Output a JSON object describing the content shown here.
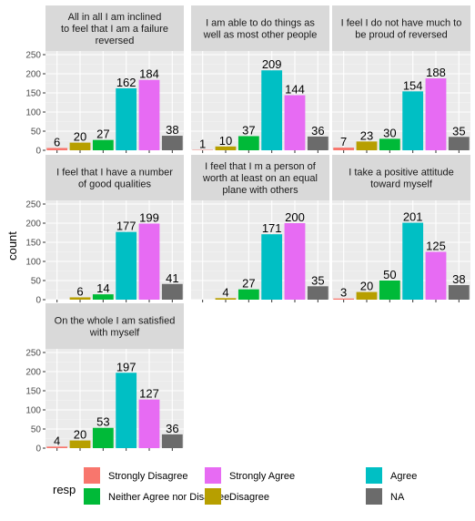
{
  "chart_data": {
    "type": "bar",
    "ylabel": "count",
    "ylim": [
      0,
      250
    ],
    "yticks": [
      0,
      50,
      100,
      150,
      200,
      250
    ],
    "facet_ncol": 3,
    "grid": true,
    "legend_title": "resp",
    "legend_position": "bottom",
    "categories": [
      "Strongly Disagree",
      "Disagree",
      "Neither Agree nor Disagree",
      "Agree",
      "Strongly Agree",
      "NA"
    ],
    "colors": [
      "#F8766D",
      "#B79F00",
      "#00BA38",
      "#00BFC4",
      "#E76BF3",
      "#6B6B6B"
    ],
    "legend_order": [
      0,
      2,
      4,
      1,
      3,
      5
    ],
    "facets": [
      {
        "title_lines": [
          "All in all I am inclined",
          "to feel that I am a failure",
          "reversed"
        ],
        "values": [
          6,
          20,
          27,
          162,
          184,
          38
        ]
      },
      {
        "title_lines": [
          "I am able to do things as",
          "well as most other people"
        ],
        "values": [
          1,
          10,
          37,
          209,
          144,
          36
        ]
      },
      {
        "title_lines": [
          "I feel I do not have much to",
          "be proud of reversed"
        ],
        "values": [
          7,
          23,
          30,
          154,
          188,
          35
        ]
      },
      {
        "title_lines": [
          "I feel that I have a number",
          "of good qualities"
        ],
        "values": [
          0,
          6,
          14,
          177,
          199,
          41
        ]
      },
      {
        "title_lines": [
          "I feel that I m a person of",
          "worth at least on an equal",
          "plane with others"
        ],
        "values": [
          0,
          4,
          27,
          171,
          200,
          35
        ]
      },
      {
        "title_lines": [
          "I take a positive attitude",
          "toward myself"
        ],
        "values": [
          3,
          20,
          50,
          201,
          125,
          38
        ]
      },
      {
        "title_lines": [
          "On the whole I am satisfied",
          "with myself"
        ],
        "values": [
          4,
          20,
          53,
          197,
          127,
          36
        ]
      }
    ]
  }
}
